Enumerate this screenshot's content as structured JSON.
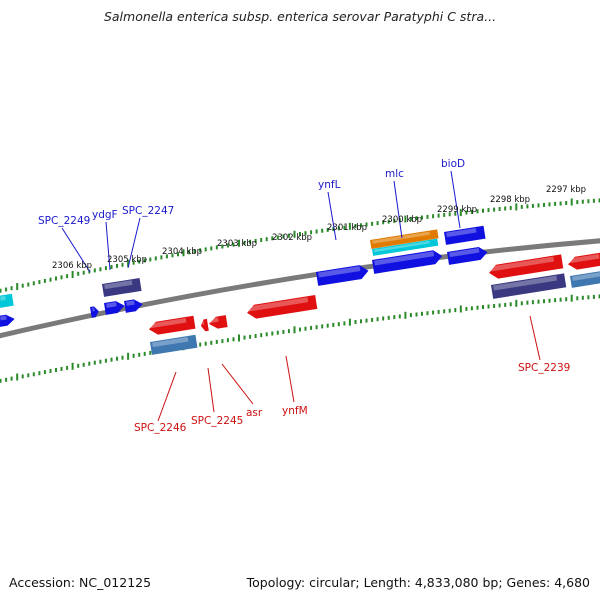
{
  "title": "Salmonella enterica subsp. enterica serovar Paratyphi C stra...",
  "footer": {
    "accession": "Accession: NC_012125",
    "stats": "Topology: circular; Length: 4,833,080 bp; Genes: 4,680"
  },
  "colors": {
    "forward_gene": "#1010e0",
    "reverse_gene": "#e01010",
    "forward_label": "#1a1acc",
    "reverse_label": "#cc1111",
    "backbone": "#7a7a7a",
    "ruler": "#2a8a2a",
    "rna": "#e07b00",
    "cyan_feature": "#00c8d8",
    "dark_feature": "#3a3880",
    "steel_feature": "#3f78b0"
  },
  "ruler_labels": [
    {
      "text": "2297 kbp"
    },
    {
      "text": "2298 kbp"
    },
    {
      "text": "2299 kbp"
    },
    {
      "text": "2300 kbp"
    },
    {
      "text": "2301 kbp"
    },
    {
      "text": "2302 kbp"
    },
    {
      "text": "2303 kbp"
    },
    {
      "text": "2304 kbp"
    },
    {
      "text": "2305 kbp"
    },
    {
      "text": "2306 kbp"
    }
  ],
  "forward_labels": [
    {
      "text": "SPC_2249"
    },
    {
      "text": "ydgF"
    },
    {
      "text": "SPC_2247"
    },
    {
      "text": "ynfL"
    },
    {
      "text": "mlc"
    },
    {
      "text": "bioD"
    }
  ],
  "reverse_labels": [
    {
      "text": "SPC_2246"
    },
    {
      "text": "SPC_2245"
    },
    {
      "text": "asr"
    },
    {
      "text": "ynfM"
    },
    {
      "text": "SPC_2239"
    }
  ]
}
